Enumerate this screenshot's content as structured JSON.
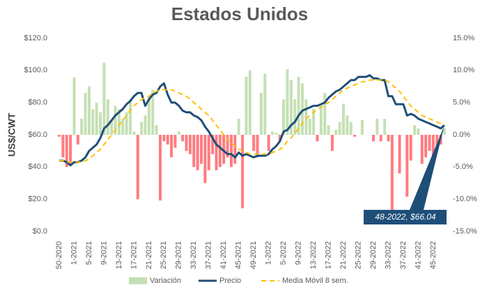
{
  "chart_data": {
    "type": "combo",
    "title": "Estados Unidos",
    "y_label": "US$/CWT",
    "categories": [
      "50-2020",
      null,
      null,
      null,
      "1-2021",
      null,
      null,
      null,
      "5-2021",
      null,
      null,
      null,
      "9-2021",
      null,
      null,
      null,
      "13-2021",
      null,
      null,
      null,
      "17-2021",
      null,
      null,
      null,
      "21-2021",
      null,
      null,
      null,
      "25-2021",
      null,
      null,
      null,
      "29-2021",
      null,
      null,
      null,
      "33-2021",
      null,
      null,
      null,
      "37-2021",
      null,
      null,
      null,
      "41-2021",
      null,
      null,
      null,
      "45-2021",
      null,
      null,
      null,
      "49-2021",
      null,
      null,
      null,
      "1-2022",
      null,
      null,
      null,
      "5-2022",
      null,
      null,
      null,
      "9-2022",
      null,
      null,
      null,
      "13-2022",
      null,
      null,
      null,
      "17-2022",
      null,
      null,
      null,
      "21-2022",
      null,
      null,
      null,
      "25-2022",
      null,
      null,
      null,
      "29-2022",
      null,
      null,
      null,
      "33-2022",
      null,
      null,
      null,
      "37-2022",
      null,
      null,
      null,
      "41-2022",
      null,
      null,
      null,
      "45-2022",
      null,
      null,
      null
    ],
    "series": [
      {
        "name": "Variación",
        "kind": "bar",
        "axis": "y2",
        "color": "#c5e0b4",
        "negative_color": "#ff7c80",
        "values": [
          -0.3,
          -3.5,
          -5,
          -4.5,
          8.9,
          -1.5,
          2.5,
          6.5,
          7.5,
          4,
          5,
          3.5,
          11.2,
          5.5,
          2.4,
          4.5,
          4,
          2.5,
          3.5,
          5.5,
          0.5,
          -10,
          2,
          3,
          6,
          7,
          1.5,
          -10.2,
          -1,
          -1.5,
          -3.5,
          -2,
          0.5,
          -1,
          -2.5,
          -3,
          -5,
          -5.5,
          -4.5,
          -7.5,
          -5.5,
          -3,
          -5.5,
          -5,
          -4.5,
          -3.5,
          -5,
          -4.5,
          2.5,
          -11.4,
          9,
          10,
          -2.5,
          -3.5,
          6.5,
          9.5,
          -2.5,
          0.5,
          0.3,
          -1,
          5.5,
          10.2,
          8.5,
          5.5,
          9,
          8,
          5.5,
          2.5,
          4,
          -1,
          4.5,
          6.5,
          1.5,
          -2.5,
          0.8,
          2,
          4.8,
          3,
          2,
          -0.3,
          0,
          2.3,
          0,
          0,
          -1,
          2.5,
          -1,
          2.5,
          -1,
          -12.5,
          0,
          -6,
          0,
          -9.6,
          -4,
          1.5,
          1,
          -4.5,
          -3.5,
          -2.5,
          -4,
          -2.5,
          -1.5,
          1
        ]
      },
      {
        "name": "Precio",
        "kind": "line",
        "color": "#1f4e79",
        "values": [
          44,
          44,
          43,
          41,
          43,
          43,
          44,
          46,
          50,
          52,
          54,
          58,
          64,
          66,
          69,
          72,
          74,
          76,
          79,
          81,
          84,
          86,
          86,
          78,
          82,
          85,
          86,
          90,
          92,
          85,
          80,
          80,
          78,
          75,
          74,
          74,
          72,
          71,
          69,
          65,
          62,
          58,
          54,
          52,
          50,
          48,
          48,
          46,
          49,
          47,
          48,
          47,
          46,
          47,
          47,
          47,
          48,
          51,
          53,
          56,
          62,
          63,
          66,
          68,
          72,
          75,
          76,
          77,
          78,
          78,
          79,
          80,
          83,
          85,
          87,
          88,
          90,
          92,
          94,
          94,
          96,
          96,
          96,
          97,
          95,
          95,
          94,
          94,
          84,
          84,
          79,
          79,
          79,
          72,
          73,
          72,
          70,
          69,
          68,
          67,
          66,
          65,
          64,
          66.04
        ]
      },
      {
        "name": "Media Móvil 8 sem.",
        "kind": "line",
        "dashed": true,
        "color": "#ffc000",
        "values": [
          44,
          44,
          43,
          43,
          43,
          43,
          43,
          44,
          45,
          47,
          49,
          51,
          54,
          57,
          60,
          63,
          66,
          69,
          72,
          75,
          78,
          80,
          82,
          83,
          84,
          86,
          87,
          88,
          88,
          88,
          88,
          87,
          86,
          85,
          84,
          82,
          80,
          78,
          76,
          74,
          72,
          69,
          66,
          63,
          60,
          57,
          55,
          53,
          51,
          50,
          49,
          48,
          48,
          48,
          48,
          48,
          48,
          49,
          50,
          51,
          53,
          56,
          58,
          61,
          64,
          67,
          70,
          72,
          74,
          76,
          77,
          79,
          80,
          82,
          84,
          86,
          88,
          89,
          90,
          91,
          92,
          93,
          93,
          94,
          94,
          94,
          94,
          94,
          93,
          91,
          89,
          87,
          84,
          81,
          78,
          76,
          74,
          72,
          71,
          70,
          69,
          68,
          67,
          66
        ]
      }
    ],
    "ylim": [
      0,
      120
    ],
    "yticks": [
      {
        "value": 0,
        "label": "$0.0"
      },
      {
        "value": 20,
        "label": "$20.0"
      },
      {
        "value": 40,
        "label": "$40.0"
      },
      {
        "value": 60,
        "label": "$60.0"
      },
      {
        "value": 80,
        "label": "$80.0"
      },
      {
        "value": 100,
        "label": "$100.0"
      },
      {
        "value": 120,
        "label": "$120.0"
      }
    ],
    "y2lim": [
      -15,
      15
    ],
    "y2ticks": [
      {
        "value": -15,
        "label": "-15.0%"
      },
      {
        "value": -10,
        "label": "-10.0%"
      },
      {
        "value": -5,
        "label": "-5.0%"
      },
      {
        "value": 0,
        "label": "0.0%"
      },
      {
        "value": 5,
        "label": "5.0%"
      },
      {
        "value": 10,
        "label": "10.0%"
      },
      {
        "value": 15,
        "label": "15.0%"
      }
    ],
    "annotation": "48-2022,  $66.04",
    "legend": "bottom"
  }
}
